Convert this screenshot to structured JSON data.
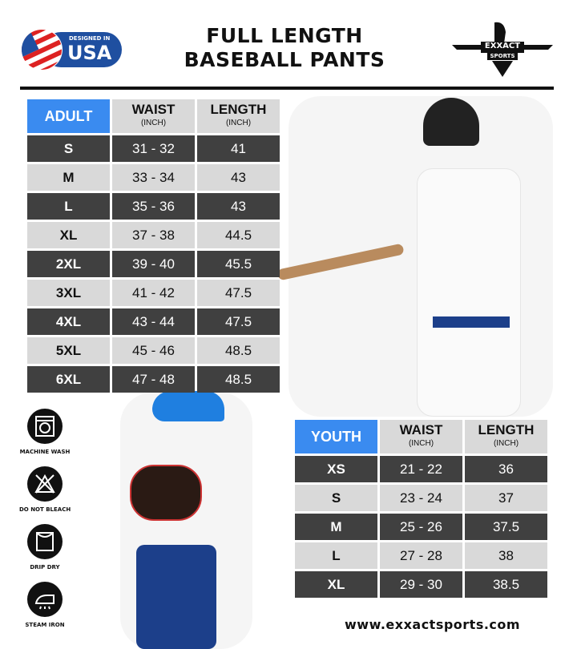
{
  "header": {
    "title_line1": "FULL LENGTH",
    "title_line2": "BASEBALL PANTS",
    "badge_small": "DESIGNED IN",
    "badge_big": "USA",
    "logo_text": "EXXACT",
    "logo_sub": "SPORTS"
  },
  "adult": {
    "label": "ADULT",
    "columns": [
      {
        "name": "WAIST",
        "unit": "(INCH)"
      },
      {
        "name": "LENGTH",
        "unit": "(INCH)"
      }
    ],
    "rows": [
      [
        "S",
        "31 - 32",
        "41"
      ],
      [
        "M",
        "33 - 34",
        "43"
      ],
      [
        "L",
        "35 - 36",
        "43"
      ],
      [
        "XL",
        "37 - 38",
        "44.5"
      ],
      [
        "2XL",
        "39 - 40",
        "45.5"
      ],
      [
        "3XL",
        "41 - 42",
        "47.5"
      ],
      [
        "4XL",
        "43 - 44",
        "47.5"
      ],
      [
        "5XL",
        "45 - 46",
        "48.5"
      ],
      [
        "6XL",
        "47 - 48",
        "48.5"
      ]
    ]
  },
  "youth": {
    "label": "YOUTH",
    "columns": [
      {
        "name": "WAIST",
        "unit": "(INCH)"
      },
      {
        "name": "LENGTH",
        "unit": "(INCH)"
      }
    ],
    "rows": [
      [
        "XS",
        "21 - 22",
        "36"
      ],
      [
        "S",
        "23 - 24",
        "37"
      ],
      [
        "M",
        "25 - 26",
        "37.5"
      ],
      [
        "L",
        "27 - 28",
        "38"
      ],
      [
        "XL",
        "29 - 30",
        "38.5"
      ]
    ]
  },
  "care": [
    {
      "icon": "machine-wash-icon",
      "label": "MACHINE WASH"
    },
    {
      "icon": "do-not-bleach-icon",
      "label": "DO NOT BLEACH"
    },
    {
      "icon": "drip-dry-icon",
      "label": "DRIP DRY"
    },
    {
      "icon": "steam-iron-icon",
      "label": "STEAM IRON"
    }
  ],
  "footer": {
    "url": "www.exxactsports.com"
  },
  "colors": {
    "accent": "#3a8bf0",
    "dark_row": "#404040",
    "light_row": "#d9d9d9"
  }
}
